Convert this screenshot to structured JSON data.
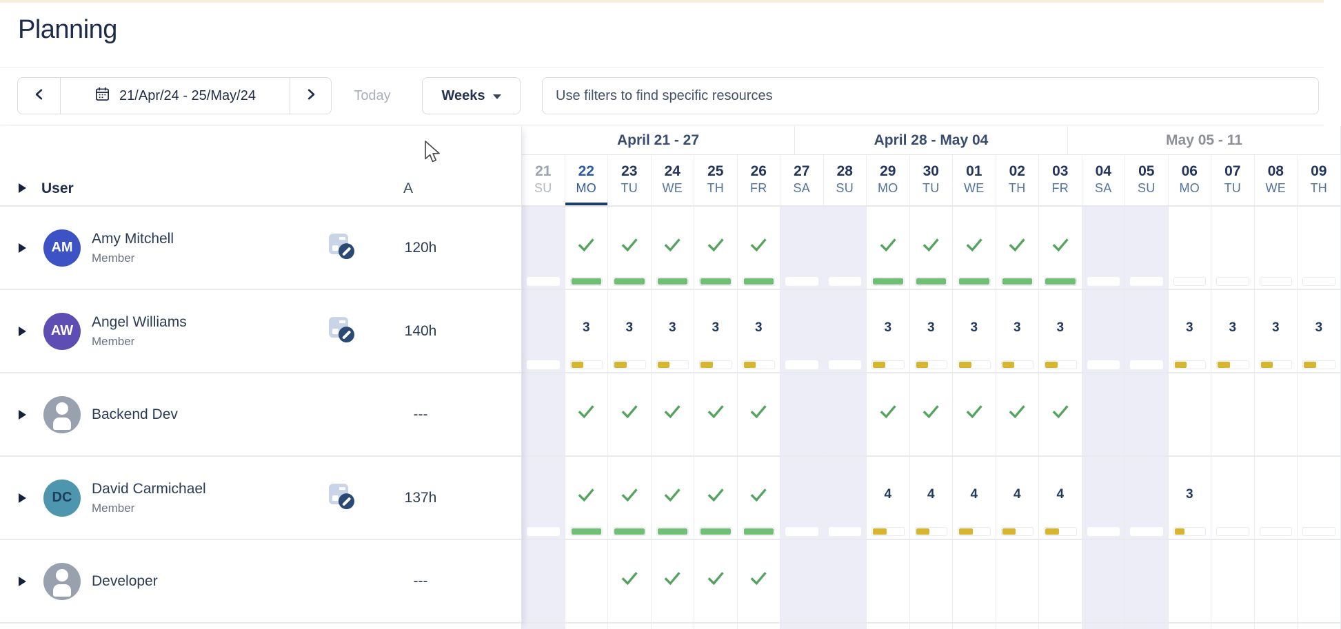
{
  "page": {
    "title": "Planning"
  },
  "toolbar": {
    "date_range": "21/Apr/24 - 25/May/24",
    "today_label": "Today",
    "zoom_label": "Weeks",
    "filter_placeholder": "Use filters to find specific resources",
    "icons": {
      "prev": "chevron-left",
      "next": "chevron-right",
      "date": "calendar",
      "zoom": "caret-down"
    }
  },
  "grid": {
    "user_header": "User",
    "availability_header": "A",
    "weeks": [
      {
        "label": "April 21 - 27",
        "span": 7,
        "muted": false
      },
      {
        "label": "April 28 - May 04",
        "span": 7,
        "muted": false
      },
      {
        "label": "May 05 - 11",
        "span": 7,
        "muted": true
      }
    ],
    "days": [
      {
        "num": "21",
        "name": "SU",
        "weekend": true,
        "state": "past"
      },
      {
        "num": "22",
        "name": "MO",
        "weekend": false,
        "state": "today"
      },
      {
        "num": "23",
        "name": "TU",
        "weekend": false
      },
      {
        "num": "24",
        "name": "WE",
        "weekend": false
      },
      {
        "num": "25",
        "name": "TH",
        "weekend": false
      },
      {
        "num": "26",
        "name": "FR",
        "weekend": false
      },
      {
        "num": "27",
        "name": "SA",
        "weekend": true
      },
      {
        "num": "28",
        "name": "SU",
        "weekend": true
      },
      {
        "num": "29",
        "name": "MO",
        "weekend": false
      },
      {
        "num": "30",
        "name": "TU",
        "weekend": false
      },
      {
        "num": "01",
        "name": "WE",
        "weekend": false
      },
      {
        "num": "02",
        "name": "TH",
        "weekend": false
      },
      {
        "num": "03",
        "name": "FR",
        "weekend": false
      },
      {
        "num": "04",
        "name": "SA",
        "weekend": true
      },
      {
        "num": "05",
        "name": "SU",
        "weekend": true
      },
      {
        "num": "06",
        "name": "MO",
        "weekend": false
      },
      {
        "num": "07",
        "name": "TU",
        "weekend": false
      },
      {
        "num": "08",
        "name": "WE",
        "weekend": false
      },
      {
        "num": "09",
        "name": "TH",
        "weekend": false
      }
    ],
    "rows": [
      {
        "name": "Amy Mitchell",
        "role": "Member",
        "initials": "AM",
        "avatar_color": "#3D53C5",
        "avatar_text_color": "#FFFFFF",
        "availability": "120h",
        "restricted_badge": true,
        "cells": [
          {
            "bar": "empty"
          },
          {
            "mark": "check",
            "bar": "green"
          },
          {
            "mark": "check",
            "bar": "green"
          },
          {
            "mark": "check",
            "bar": "green"
          },
          {
            "mark": "check",
            "bar": "green"
          },
          {
            "mark": "check",
            "bar": "green"
          },
          {
            "bar": "empty"
          },
          {
            "bar": "empty"
          },
          {
            "mark": "check",
            "bar": "green"
          },
          {
            "mark": "check",
            "bar": "green"
          },
          {
            "mark": "check",
            "bar": "green"
          },
          {
            "mark": "check",
            "bar": "green"
          },
          {
            "mark": "check",
            "bar": "green"
          },
          {
            "bar": "empty"
          },
          {
            "bar": "empty"
          },
          {
            "bar": "empty"
          },
          {
            "bar": "empty"
          },
          {
            "bar": "empty"
          },
          {
            "bar": "empty"
          }
        ]
      },
      {
        "name": "Angel Williams",
        "role": "Member",
        "initials": "AW",
        "avatar_color": "#5E4DB2",
        "avatar_text_color": "#FFFFFF",
        "availability": "140h",
        "restricted_badge": true,
        "cells": [
          {
            "bar": "empty"
          },
          {
            "mark": "3",
            "bar": "yellow",
            "fill": 0.37
          },
          {
            "mark": "3",
            "bar": "yellow",
            "fill": 0.37
          },
          {
            "mark": "3",
            "bar": "yellow",
            "fill": 0.37
          },
          {
            "mark": "3",
            "bar": "yellow",
            "fill": 0.37
          },
          {
            "mark": "3",
            "bar": "yellow",
            "fill": 0.37
          },
          {
            "bar": "empty"
          },
          {
            "bar": "empty"
          },
          {
            "mark": "3",
            "bar": "yellow",
            "fill": 0.37
          },
          {
            "mark": "3",
            "bar": "yellow",
            "fill": 0.37
          },
          {
            "mark": "3",
            "bar": "yellow",
            "fill": 0.37
          },
          {
            "mark": "3",
            "bar": "yellow",
            "fill": 0.37
          },
          {
            "mark": "3",
            "bar": "yellow",
            "fill": 0.37
          },
          {
            "bar": "empty"
          },
          {
            "bar": "empty"
          },
          {
            "mark": "3",
            "bar": "yellow",
            "fill": 0.37
          },
          {
            "mark": "3",
            "bar": "yellow",
            "fill": 0.37
          },
          {
            "mark": "3",
            "bar": "yellow",
            "fill": 0.37
          },
          {
            "mark": "3",
            "bar": "yellow",
            "fill": 0.37
          }
        ]
      },
      {
        "name": "Backend Dev",
        "role": "",
        "initials": "",
        "avatar_color": "",
        "avatar_text_color": "",
        "availability": "---",
        "restricted_badge": false,
        "cells": [
          {},
          {
            "mark": "check"
          },
          {
            "mark": "check"
          },
          {
            "mark": "check"
          },
          {
            "mark": "check"
          },
          {
            "mark": "check"
          },
          {},
          {},
          {
            "mark": "check"
          },
          {
            "mark": "check"
          },
          {
            "mark": "check"
          },
          {
            "mark": "check"
          },
          {
            "mark": "check"
          },
          {},
          {},
          {},
          {},
          {},
          {}
        ]
      },
      {
        "name": "David Carmichael",
        "role": "Member",
        "initials": "DC",
        "avatar_color": "#4E96AE",
        "avatar_text_color": "#1C3D5C",
        "availability": "137h",
        "restricted_badge": true,
        "cells": [
          {
            "bar": "empty"
          },
          {
            "mark": "check",
            "bar": "green"
          },
          {
            "mark": "check",
            "bar": "green"
          },
          {
            "mark": "check",
            "bar": "green"
          },
          {
            "mark": "check",
            "bar": "green"
          },
          {
            "mark": "check",
            "bar": "green"
          },
          {
            "bar": "empty"
          },
          {
            "bar": "empty"
          },
          {
            "mark": "4",
            "bar": "yellow",
            "fill": 0.42
          },
          {
            "mark": "4",
            "bar": "yellow",
            "fill": 0.42
          },
          {
            "mark": "4",
            "bar": "yellow",
            "fill": 0.42
          },
          {
            "mark": "4",
            "bar": "yellow",
            "fill": 0.42
          },
          {
            "mark": "4",
            "bar": "yellow",
            "fill": 0.42
          },
          {
            "bar": "empty"
          },
          {
            "bar": "empty"
          },
          {
            "mark": "3",
            "bar": "yellow",
            "fill": 0.3
          },
          {
            "bar": "empty"
          },
          {
            "bar": "empty"
          },
          {
            "bar": "empty"
          }
        ]
      },
      {
        "name": "Developer",
        "role": "",
        "initials": "",
        "avatar_color": "",
        "avatar_text_color": "",
        "availability": "---",
        "restricted_badge": false,
        "cells": [
          {},
          {},
          {
            "mark": "check"
          },
          {
            "mark": "check"
          },
          {
            "mark": "check"
          },
          {
            "mark": "check"
          },
          {},
          {},
          {},
          {},
          {},
          {},
          {},
          {},
          {},
          {},
          {},
          {},
          {}
        ]
      }
    ]
  },
  "icons": {
    "row_expand": "caret-right",
    "generic_avatar": "person",
    "restriction_badge": "schedule-blocked",
    "cell_done": "checkmark",
    "pointer": "mouse-cursor"
  },
  "colors": {
    "check": "#55A35F",
    "bar_green": "#6FBF75",
    "bar_yellow": "#D7B52E",
    "weekend_bg": "#EDEDF8",
    "today_accent": "#1F3C68",
    "row_line": "#E9EAEE",
    "grid_line": "#EBECF1",
    "toolbar_border": "#D9DCE1",
    "muted_text": "#8C9096",
    "disabled_text": "#A9AFBA"
  }
}
